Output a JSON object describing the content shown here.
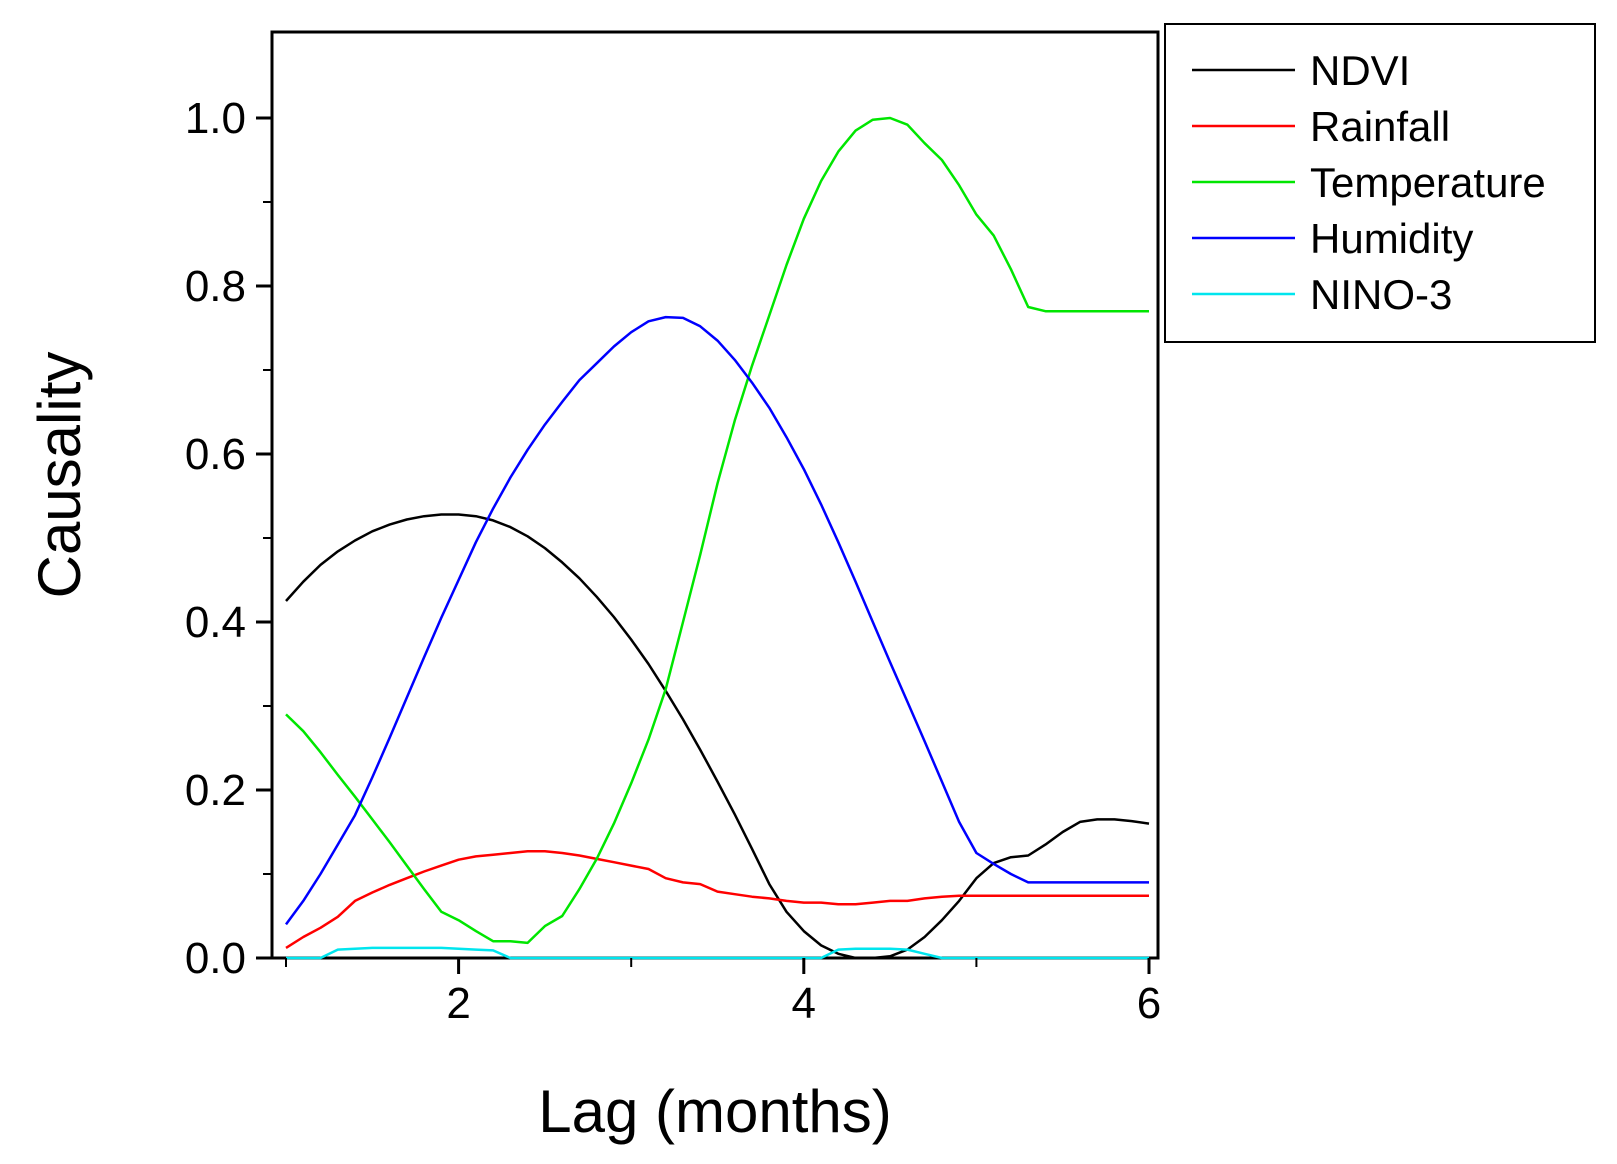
{
  "chart_data": {
    "type": "line",
    "title": "",
    "xlabel": "Lag (months)",
    "ylabel": "Causality",
    "xlim": [
      0.95,
      6
    ],
    "ylim": [
      0,
      1.1
    ],
    "x_ticks": [
      2,
      4,
      6
    ],
    "x_tick_labels": [
      "2",
      "4",
      "6"
    ],
    "y_ticks": [
      0.0,
      0.2,
      0.4,
      0.6,
      0.8,
      1.0
    ],
    "y_tick_labels": [
      "0.0",
      "0.2",
      "0.4",
      "0.6",
      "0.8",
      "1.0"
    ],
    "grid": false,
    "legend_position": "top-right outside",
    "x": [
      1.0,
      1.1,
      1.2,
      1.3,
      1.4,
      1.5,
      1.6,
      1.7,
      1.8,
      1.9,
      2.0,
      2.1,
      2.2,
      2.3,
      2.4,
      2.5,
      2.6,
      2.7,
      2.8,
      2.9,
      3.0,
      3.1,
      3.2,
      3.3,
      3.4,
      3.5,
      3.6,
      3.7,
      3.8,
      3.9,
      4.0,
      4.1,
      4.2,
      4.3,
      4.4,
      4.5,
      4.6,
      4.7,
      4.8,
      4.9,
      5.0,
      5.1,
      5.2,
      5.3,
      5.4,
      5.5,
      5.6,
      5.7,
      5.8,
      5.9,
      6.0
    ],
    "series": [
      {
        "name": "NDVI",
        "color": "#000000",
        "values": [
          0.425,
          0.448,
          0.468,
          0.484,
          0.497,
          0.508,
          0.516,
          0.522,
          0.526,
          0.528,
          0.528,
          0.526,
          0.521,
          0.513,
          0.502,
          0.488,
          0.471,
          0.452,
          0.43,
          0.406,
          0.379,
          0.35,
          0.318,
          0.284,
          0.248,
          0.21,
          0.171,
          0.13,
          0.088,
          0.055,
          0.032,
          0.015,
          0.005,
          0.0,
          0.0,
          0.002,
          0.01,
          0.025,
          0.045,
          0.068,
          0.095,
          0.113,
          0.12,
          0.122,
          0.135,
          0.15,
          0.162,
          0.165,
          0.165,
          0.163,
          0.16
        ]
      },
      {
        "name": "Rainfall",
        "color": "#ff0000",
        "values": [
          0.012,
          0.025,
          0.036,
          0.049,
          0.068,
          0.078,
          0.087,
          0.095,
          0.103,
          0.11,
          0.117,
          0.121,
          0.123,
          0.125,
          0.127,
          0.127,
          0.125,
          0.122,
          0.118,
          0.114,
          0.11,
          0.106,
          0.095,
          0.09,
          0.088,
          0.079,
          0.076,
          0.073,
          0.071,
          0.068,
          0.066,
          0.066,
          0.064,
          0.064,
          0.066,
          0.068,
          0.068,
          0.071,
          0.073,
          0.074,
          0.074,
          0.074,
          0.074,
          0.074,
          0.074,
          0.074,
          0.074,
          0.074,
          0.074,
          0.074,
          0.074
        ]
      },
      {
        "name": "Temperature",
        "color": "#00e600",
        "values": [
          0.29,
          0.27,
          0.245,
          0.218,
          0.192,
          0.165,
          0.138,
          0.11,
          0.082,
          0.055,
          0.045,
          0.032,
          0.02,
          0.02,
          0.018,
          0.038,
          0.05,
          0.082,
          0.118,
          0.16,
          0.208,
          0.26,
          0.32,
          0.4,
          0.48,
          0.565,
          0.64,
          0.705,
          0.765,
          0.825,
          0.88,
          0.925,
          0.96,
          0.985,
          0.998,
          1.0,
          0.992,
          0.97,
          0.95,
          0.92,
          0.885,
          0.86,
          0.82,
          0.775,
          0.77,
          0.77,
          0.77,
          0.77,
          0.77,
          0.77,
          0.77
        ]
      },
      {
        "name": "Humidity",
        "color": "#0000ff",
        "values": [
          0.04,
          0.068,
          0.1,
          0.135,
          0.17,
          0.215,
          0.262,
          0.31,
          0.358,
          0.405,
          0.45,
          0.495,
          0.535,
          0.572,
          0.605,
          0.635,
          0.662,
          0.688,
          0.708,
          0.728,
          0.745,
          0.758,
          0.763,
          0.762,
          0.752,
          0.735,
          0.712,
          0.685,
          0.655,
          0.62,
          0.582,
          0.54,
          0.495,
          0.448,
          0.4,
          0.352,
          0.305,
          0.258,
          0.21,
          0.162,
          0.125,
          0.112,
          0.1,
          0.09,
          0.09,
          0.09,
          0.09,
          0.09,
          0.09,
          0.09,
          0.09
        ]
      },
      {
        "name": "NINO-3",
        "color": "#00e5ee",
        "values": [
          0.0,
          0.0,
          0.0,
          0.01,
          0.011,
          0.012,
          0.012,
          0.012,
          0.012,
          0.012,
          0.011,
          0.01,
          0.009,
          0.0,
          0.0,
          0.0,
          0.0,
          0.0,
          0.0,
          0.0,
          0.0,
          0.0,
          0.0,
          0.0,
          0.0,
          0.0,
          0.0,
          0.0,
          0.0,
          0.0,
          0.0,
          0.0,
          0.01,
          0.011,
          0.011,
          0.011,
          0.01,
          0.005,
          0.0,
          0.0,
          0.0,
          0.0,
          0.0,
          0.0,
          0.0,
          0.0,
          0.0,
          0.0,
          0.0,
          0.0,
          0.0
        ]
      }
    ]
  }
}
